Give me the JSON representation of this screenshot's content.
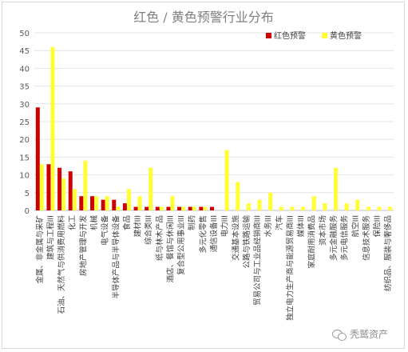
{
  "chart_data": {
    "type": "bar",
    "title": "红色 / 黄色预警行业分布",
    "xlabel": "",
    "ylabel": "",
    "ylim": [
      0,
      50
    ],
    "yticks": [
      0,
      5,
      10,
      15,
      20,
      25,
      30,
      35,
      40,
      45,
      50
    ],
    "grid": true,
    "legend_position": "top-right",
    "categories": [
      "金属、非金属与采矿",
      "建筑与工程III",
      "石油、天然气与供消费用燃料",
      "化工",
      "房地产管理与开发",
      "机械",
      "电气设备",
      "半导体产品与半导体设备",
      "食品",
      "建材III",
      "综合类III",
      "纸与林木产品",
      "酒店、餐馆与休闲III",
      "复合型公用事业III",
      "制药",
      "多元化零售",
      "通信设备III",
      "电力III",
      "交通基本设施",
      "公路与铁路运输",
      "贸易公司与工业品经销商III",
      "水务III",
      "汽车",
      "独立电力生产商与能源贸易商III",
      "媒体III",
      "家庭耐用消费品",
      "资本市场",
      "多元金融服务",
      "多元电信服务",
      "航空III",
      "信息技术服务",
      "保险III",
      "纺织品、服装与奢侈品"
    ],
    "series": [
      {
        "name": "红色预警",
        "color": "#cc0000",
        "values": [
          29,
          13,
          12,
          11,
          4,
          4,
          3,
          3,
          2,
          1,
          1,
          1,
          1,
          1,
          1,
          1,
          1,
          0,
          0,
          0,
          0,
          0,
          0,
          0,
          0,
          0,
          0,
          0,
          0,
          0,
          0,
          0,
          0
        ]
      },
      {
        "name": "黄色预警",
        "color": "#ffff33",
        "values": [
          13,
          46,
          9,
          6,
          14,
          4,
          4,
          1,
          6,
          4,
          12,
          1,
          4,
          1,
          1,
          1,
          0,
          17,
          8,
          2,
          3,
          5,
          1,
          1,
          1,
          4,
          2,
          12,
          2,
          3,
          1,
          1,
          1
        ]
      }
    ]
  },
  "watermark": {
    "text": "秃鹫资产",
    "icon": "wechat-icon"
  }
}
